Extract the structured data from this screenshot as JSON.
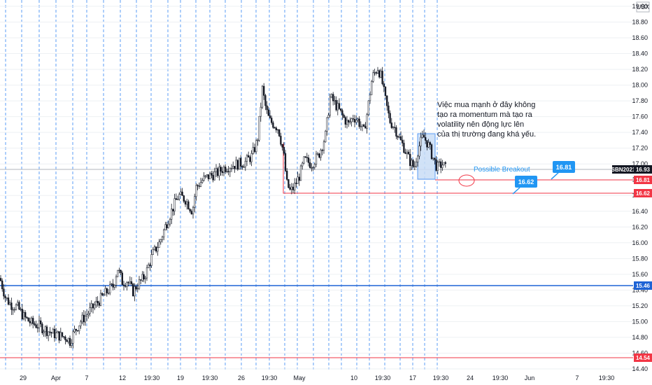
{
  "chart_data": {
    "type": "candlestick",
    "symbol": "SBN2021",
    "currency": "USX",
    "last_price": "16.93",
    "ylim": [
      14.4,
      19.0
    ],
    "y_ticks": [
      "19.00",
      "18.80",
      "18.60",
      "18.40",
      "18.20",
      "18.00",
      "17.80",
      "17.60",
      "17.40",
      "17.20",
      "17.00",
      "16.80",
      "16.60",
      "16.40",
      "16.20",
      "16.00",
      "15.80",
      "15.60",
      "15.40",
      "15.20",
      "15.00",
      "14.80",
      "14.60",
      "14.40"
    ],
    "x_ticks": [
      "29",
      "Apr",
      "7",
      "12",
      "19:30",
      "19",
      "19:30",
      "26",
      "19:30",
      "May",
      "10",
      "19:30",
      "17",
      "19:30",
      "24",
      "19:30",
      "Jun",
      "7",
      "19:30"
    ],
    "series": [
      {
        "points": [
          [
            0,
            15.55
          ],
          [
            8,
            15.3
          ],
          [
            15,
            15.22
          ],
          [
            25,
            15.18
          ],
          [
            35,
            15.05
          ],
          [
            45,
            14.98
          ],
          [
            55,
            14.95
          ],
          [
            65,
            14.9
          ],
          [
            75,
            14.85
          ],
          [
            85,
            14.82
          ],
          [
            95,
            14.8
          ],
          [
            100,
            14.75
          ],
          [
            105,
            14.85
          ],
          [
            115,
            15.0
          ],
          [
            125,
            15.1
          ],
          [
            135,
            15.2
          ],
          [
            145,
            15.3
          ],
          [
            155,
            15.4
          ],
          [
            162,
            15.45
          ],
          [
            168,
            15.68
          ],
          [
            175,
            15.5
          ],
          [
            182,
            15.52
          ],
          [
            190,
            15.38
          ],
          [
            195,
            15.45
          ],
          [
            205,
            15.55
          ],
          [
            210,
            15.65
          ],
          [
            218,
            15.85
          ],
          [
            228,
            16.0
          ],
          [
            236,
            16.2
          ],
          [
            245,
            16.4
          ],
          [
            255,
            16.6
          ],
          [
            265,
            16.55
          ],
          [
            275,
            16.4
          ],
          [
            280,
            16.7
          ],
          [
            290,
            16.8
          ],
          [
            300,
            16.85
          ],
          [
            310,
            16.88
          ],
          [
            320,
            16.95
          ],
          [
            330,
            16.98
          ],
          [
            340,
            17.0
          ],
          [
            350,
            17.02
          ],
          [
            360,
            17.1
          ],
          [
            368,
            17.3
          ],
          [
            375,
            17.95
          ],
          [
            380,
            17.7
          ],
          [
            385,
            17.55
          ],
          [
            392,
            17.5
          ],
          [
            398,
            17.45
          ],
          [
            405,
            17.15
          ],
          [
            410,
            16.75
          ],
          [
            415,
            16.65
          ],
          [
            420,
            16.7
          ],
          [
            428,
            16.85
          ],
          [
            435,
            17.05
          ],
          [
            445,
            17.0
          ],
          [
            455,
            17.1
          ],
          [
            465,
            17.35
          ],
          [
            472,
            17.85
          ],
          [
            480,
            17.75
          ],
          [
            490,
            17.6
          ],
          [
            498,
            17.5
          ],
          [
            505,
            17.6
          ],
          [
            512,
            17.55
          ],
          [
            520,
            17.4
          ],
          [
            525,
            17.65
          ],
          [
            532,
            18.1
          ],
          [
            540,
            18.22
          ],
          [
            545,
            18.1
          ],
          [
            550,
            17.85
          ],
          [
            557,
            17.55
          ],
          [
            565,
            17.45
          ],
          [
            572,
            17.3
          ],
          [
            578,
            17.2
          ],
          [
            585,
            17.05
          ],
          [
            592,
            16.95
          ],
          [
            598,
            17.2
          ],
          [
            605,
            17.35
          ],
          [
            612,
            17.25
          ],
          [
            618,
            17.1
          ],
          [
            625,
            16.95
          ],
          [
            632,
            17.0
          ],
          [
            638,
            16.93
          ]
        ]
      }
    ],
    "annotations": {
      "note": "Việc mua mạnh ở đây không tạo ra momentum mà tạo ra volatility nên động lực lên của thị trường đang khá yếu.",
      "note_lines": [
        "Việc mua mạnh ở đây không",
        "tạo ra momentum mà tạo ra",
        "volatility nên động lực lên",
        "của thị trường đang khá yếu."
      ],
      "possible_breakout": "Possible Breakout",
      "callout_high": "16.81",
      "callout_low": "16.62"
    },
    "levels": [
      {
        "value": "16.81",
        "color": "#f23645"
      },
      {
        "value": "16.62",
        "color": "#f23645"
      },
      {
        "value": "15.46",
        "color": "#1e63d5"
      },
      {
        "value": "14.54",
        "color": "#f23645"
      }
    ]
  },
  "colors": {
    "candle": "#131722",
    "grid_dashed": "#5b9cf6",
    "blue_level": "#1e63d5",
    "red_level": "#f23645",
    "callout": "#2196f3",
    "box_fill": "#c9ddf6"
  }
}
